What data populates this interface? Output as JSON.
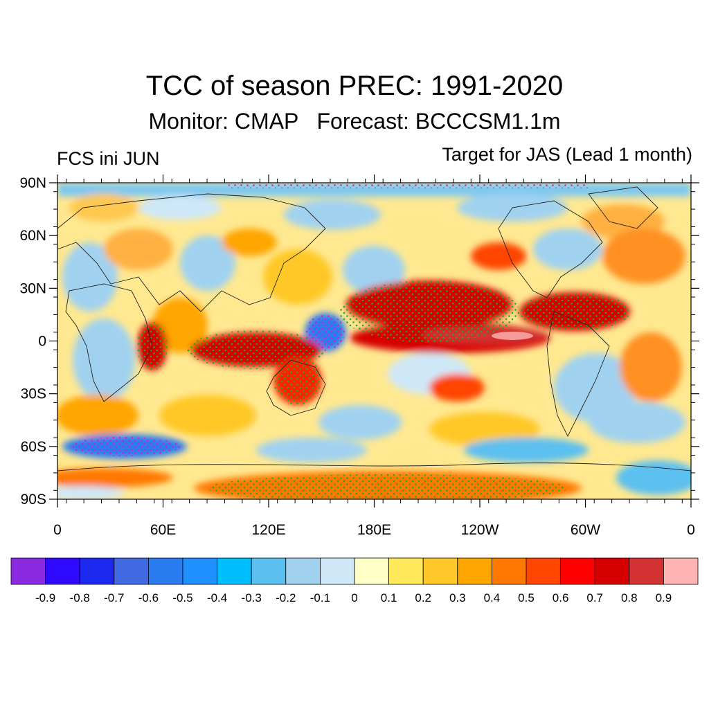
{
  "title": "TCC of season PREC: 1991-2020",
  "subtitle": "Monitor: CMAP   Forecast: BCCCSM1.1m",
  "left_label": "FCS ini JUN",
  "right_label": "Target for JAS (Lead 1 month)",
  "lat_ticks": [
    "90N",
    "60N",
    "30N",
    "0",
    "30S",
    "60S",
    "90S"
  ],
  "lon_ticks": [
    "0",
    "60E",
    "120E",
    "180E",
    "120W",
    "60W",
    "0"
  ],
  "colorbar": {
    "colors": [
      "#8a2be2",
      "#2f0aff",
      "#1c28f0",
      "#4169e1",
      "#2b7bf0",
      "#1e90ff",
      "#00bfff",
      "#5bc0f0",
      "#a0d2f0",
      "#cfe8f8",
      "#ffffc8",
      "#ffe85a",
      "#ffc828",
      "#ffa500",
      "#ff7800",
      "#ff4500",
      "#ff0000",
      "#d70000",
      "#d23232",
      "#ffb4b4"
    ],
    "labels": [
      "-0.9",
      "-0.8",
      "-0.7",
      "-0.6",
      "-0.5",
      "-0.4",
      "-0.3",
      "-0.2",
      "-0.1",
      "0",
      "0.1",
      "0.2",
      "0.3",
      "0.4",
      "0.5",
      "0.6",
      "0.7",
      "0.8",
      "0.9"
    ]
  }
}
